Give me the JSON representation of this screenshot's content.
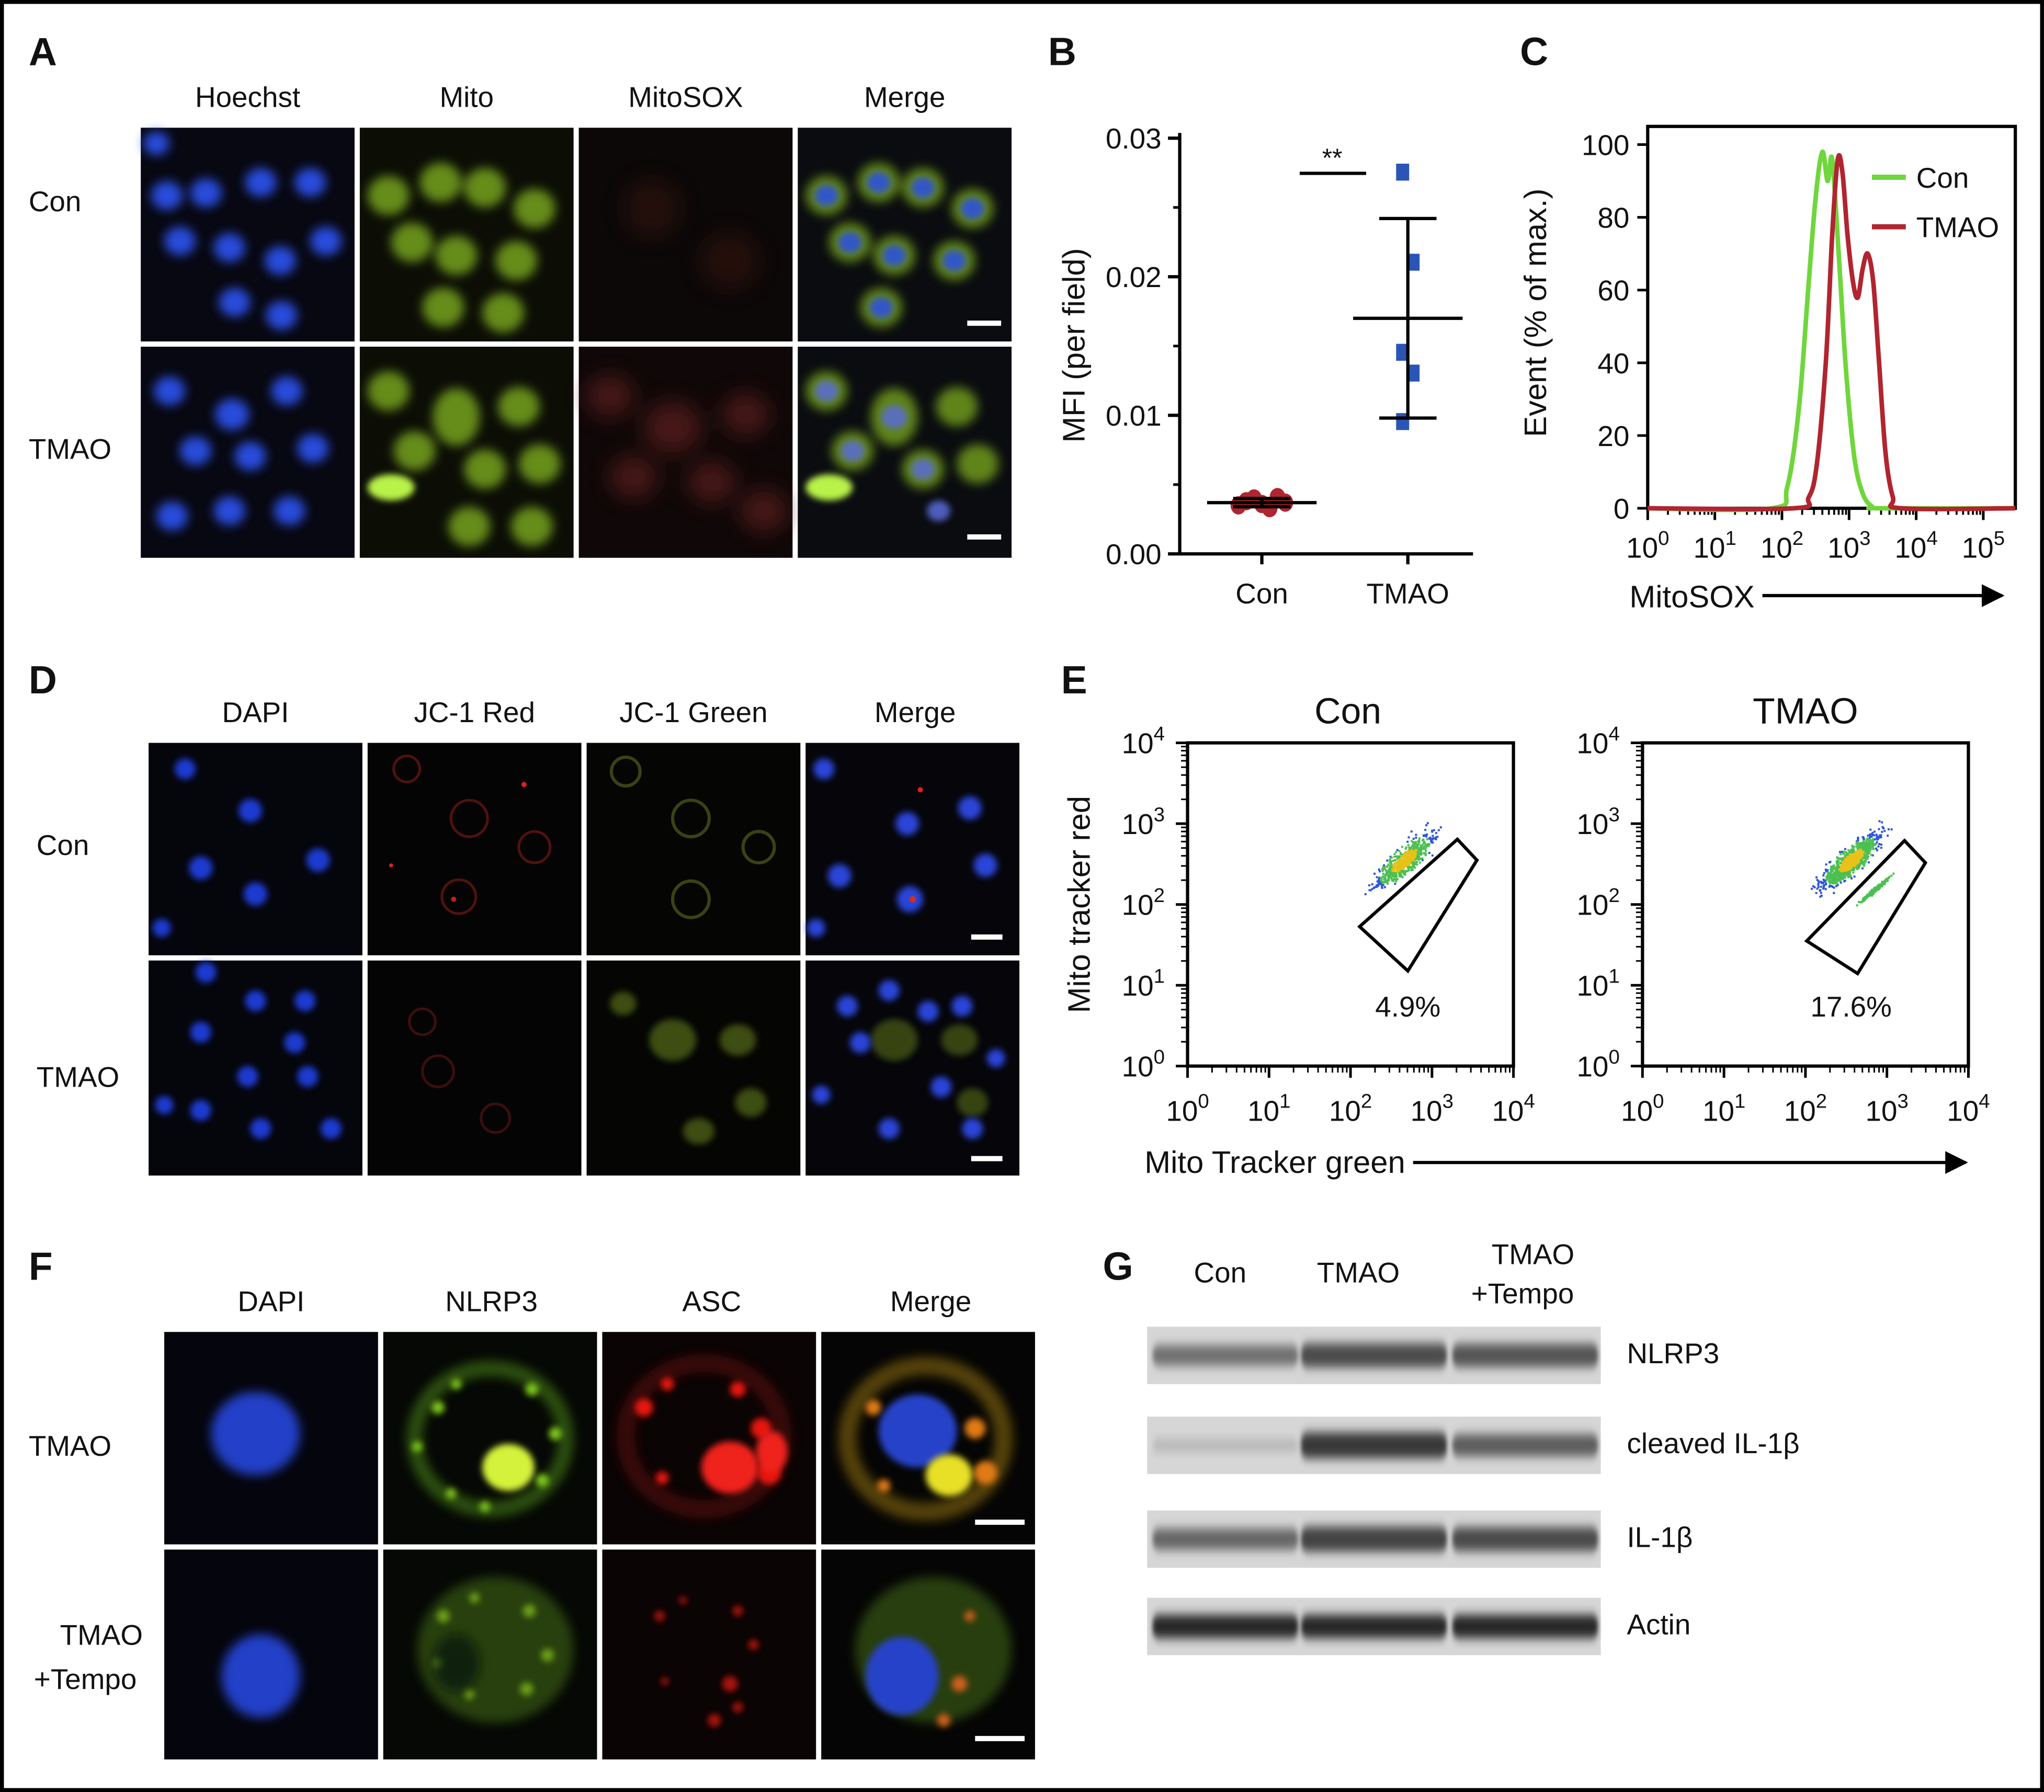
{
  "panels": {
    "A": {
      "letter": "A",
      "columns": [
        "Hoechst",
        "Mito",
        "MitoSOX",
        "Merge"
      ],
      "rows": [
        "Con",
        "TMAO"
      ]
    },
    "B": {
      "letter": "B",
      "significance": "**"
    },
    "C": {
      "letter": "C",
      "xlabel": "MitoSOX"
    },
    "D": {
      "letter": "D",
      "columns": [
        "DAPI",
        "JC-1 Red",
        "JC-1 Green",
        "Merge"
      ],
      "rows": [
        "Con",
        "TMAO"
      ]
    },
    "E": {
      "letter": "E",
      "xlabel": "Mito Tracker green",
      "ylabel": "Mito tracker red",
      "plots": [
        {
          "title": "Con",
          "gate_percent": "4.9%"
        },
        {
          "title": "TMAO",
          "gate_percent": "17.6%"
        }
      ]
    },
    "F": {
      "letter": "F",
      "columns": [
        "DAPI",
        "NLRP3",
        "ASC",
        "Merge"
      ],
      "rows": [
        [
          "TMAO"
        ],
        [
          "TMAO",
          "+Tempo"
        ]
      ]
    },
    "G": {
      "letter": "G",
      "lanes": [
        [
          "Con"
        ],
        [
          "TMAO"
        ],
        [
          "TMAO",
          "+Tempo"
        ]
      ],
      "bands": [
        {
          "label": "NLRP3",
          "intensity": [
            0.55,
            0.75,
            0.7
          ]
        },
        {
          "label": "cleaved IL-1β",
          "intensity": [
            0.15,
            0.85,
            0.65
          ]
        },
        {
          "label": "IL-1β",
          "intensity": [
            0.6,
            0.8,
            0.75
          ]
        },
        {
          "label": "Actin",
          "intensity": [
            0.95,
            0.95,
            0.95
          ]
        }
      ]
    }
  },
  "chart_data": [
    {
      "id": "B",
      "type": "scatter",
      "ylabel": "MFI (per field)",
      "categories": [
        "Con",
        "TMAO"
      ],
      "ylim": [
        0,
        0.03
      ],
      "yticks": [
        "0.00",
        "0.01",
        "0.02",
        "0.03"
      ],
      "series": [
        {
          "name": "Con",
          "values": [
            0.0035,
            0.0038,
            0.004,
            0.0036,
            0.0033,
            0.0041,
            0.0037
          ],
          "mean": 0.0037,
          "sd": 0.0003,
          "color": "#b0252f"
        },
        {
          "name": "TMAO",
          "values": [
            0.0275,
            0.021,
            0.0145,
            0.013,
            0.0095
          ],
          "mean": 0.017,
          "sd": 0.0072,
          "color": "#2a55b5"
        }
      ]
    },
    {
      "id": "C",
      "type": "line",
      "ylabel": "Event (% of max.)",
      "xscale": "log",
      "xlim": [
        1,
        300000
      ],
      "ylim": [
        0,
        105
      ],
      "yticks": [
        0,
        20,
        40,
        60,
        80,
        100
      ],
      "xticks": [
        "10^0",
        "10^1",
        "10^2",
        "10^3",
        "10^4",
        "10^5"
      ],
      "legend": "top-right",
      "series": [
        {
          "name": "Con",
          "color": "#6fd63c",
          "x": [
            1,
            70,
            120,
            180,
            250,
            320,
            400,
            480,
            560,
            700,
            900,
            1200,
            1600,
            2200,
            3000,
            300000
          ],
          "y": [
            0,
            0,
            6,
            28,
            62,
            86,
            98,
            90,
            96,
            70,
            38,
            14,
            4,
            0.5,
            0,
            0
          ]
        },
        {
          "name": "TMAO",
          "color": "#b0252f",
          "x": [
            1,
            150,
            250,
            330,
            450,
            560,
            680,
            800,
            950,
            1150,
            1350,
            1600,
            1900,
            2300,
            2800,
            3500,
            4500,
            6000,
            300000
          ],
          "y": [
            0,
            0,
            3,
            12,
            40,
            75,
            96,
            92,
            75,
            62,
            58,
            66,
            70,
            62,
            40,
            15,
            3,
            0,
            0
          ]
        }
      ]
    },
    {
      "id": "E",
      "type": "scatter",
      "xlabel": "Mito Tracker green",
      "ylabel": "Mito tracker red",
      "xscale": "log",
      "yscale": "log",
      "xlim": [
        1,
        10000
      ],
      "ylim": [
        1,
        10000
      ],
      "ticks": [
        "10^0",
        "10^1",
        "10^2",
        "10^3",
        "10^4"
      ],
      "plots": [
        {
          "title": "Con",
          "gate_percent": 4.9
        },
        {
          "title": "TMAO",
          "gate_percent": 17.6
        }
      ]
    }
  ],
  "colors": {
    "hoechst": "#1d3fd9",
    "green_signal": "#8fd12a",
    "red_signal": "#e01b10",
    "con_green": "#6fd63c",
    "tmao_red": "#b0252f",
    "tmao_blue": "#2a55b5"
  }
}
